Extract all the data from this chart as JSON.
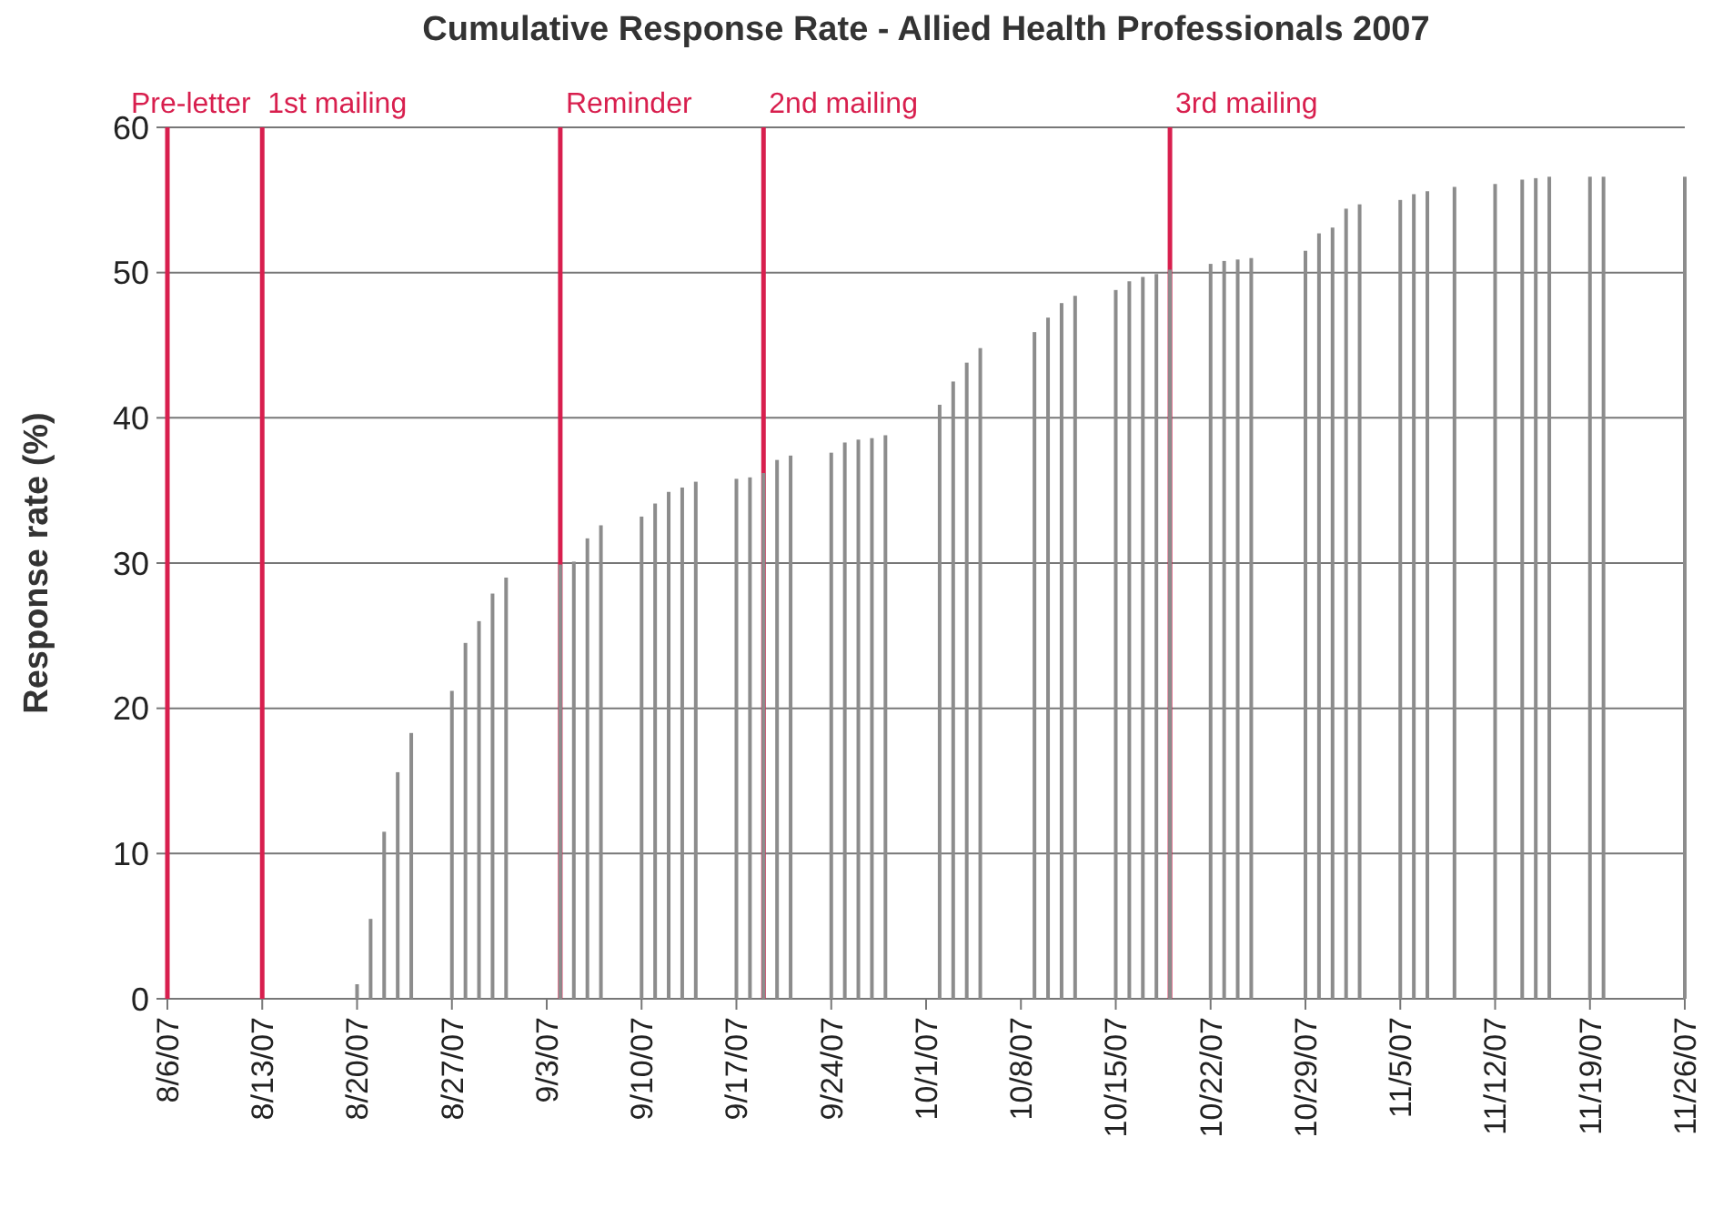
{
  "chart_data": {
    "type": "bar",
    "title": "Cumulative Response Rate - Allied Health Professionals 2007",
    "ylabel": "Response rate (%)",
    "x": [
      "2007-08-20",
      "2007-08-21",
      "2007-08-22",
      "2007-08-23",
      "2007-08-24",
      "2007-08-27",
      "2007-08-28",
      "2007-08-29",
      "2007-08-30",
      "2007-08-31",
      "2007-09-04",
      "2007-09-05",
      "2007-09-06",
      "2007-09-07",
      "2007-09-10",
      "2007-09-11",
      "2007-09-12",
      "2007-09-13",
      "2007-09-14",
      "2007-09-17",
      "2007-09-18",
      "2007-09-19",
      "2007-09-20",
      "2007-09-21",
      "2007-09-24",
      "2007-09-25",
      "2007-09-26",
      "2007-09-27",
      "2007-09-28",
      "2007-10-02",
      "2007-10-03",
      "2007-10-04",
      "2007-10-05",
      "2007-10-09",
      "2007-10-10",
      "2007-10-11",
      "2007-10-12",
      "2007-10-15",
      "2007-10-16",
      "2007-10-17",
      "2007-10-18",
      "2007-10-19",
      "2007-10-22",
      "2007-10-23",
      "2007-10-24",
      "2007-10-25",
      "2007-10-29",
      "2007-10-30",
      "2007-10-31",
      "2007-11-01",
      "2007-11-02",
      "2007-11-05",
      "2007-11-06",
      "2007-11-07",
      "2007-11-09",
      "2007-11-12",
      "2007-11-14",
      "2007-11-15",
      "2007-11-16",
      "2007-11-19",
      "2007-11-20",
      "2007-11-26"
    ],
    "values": [
      1.0,
      5.5,
      11.5,
      15.6,
      18.3,
      21.2,
      24.5,
      26.0,
      27.9,
      29.0,
      29.9,
      30.1,
      31.7,
      32.6,
      33.2,
      34.1,
      34.9,
      35.2,
      35.6,
      35.8,
      35.9,
      36.2,
      37.1,
      37.4,
      37.6,
      38.3,
      38.5,
      38.6,
      38.8,
      40.9,
      42.5,
      43.8,
      44.8,
      45.9,
      46.9,
      47.9,
      48.4,
      48.8,
      49.4,
      49.7,
      49.9,
      50.2,
      50.6,
      50.8,
      50.9,
      51.0,
      51.5,
      52.7,
      53.1,
      54.4,
      54.7,
      55.0,
      55.4,
      55.6,
      55.9,
      56.1,
      56.4,
      56.5,
      56.6,
      56.6,
      56.6,
      56.6
    ],
    "color": "#8c8c8c",
    "xlim": [
      "2007-08-06",
      "2007-11-26"
    ],
    "xticks": [
      {
        "value": "2007-08-06",
        "label": "8/6/07"
      },
      {
        "value": "2007-08-13",
        "label": "8/13/07"
      },
      {
        "value": "2007-08-20",
        "label": "8/20/07"
      },
      {
        "value": "2007-08-27",
        "label": "8/27/07"
      },
      {
        "value": "2007-09-03",
        "label": "9/3/07"
      },
      {
        "value": "2007-09-10",
        "label": "9/10/07"
      },
      {
        "value": "2007-09-17",
        "label": "9/17/07"
      },
      {
        "value": "2007-09-24",
        "label": "9/24/07"
      },
      {
        "value": "2007-10-01",
        "label": "10/1/07"
      },
      {
        "value": "2007-10-08",
        "label": "10/8/07"
      },
      {
        "value": "2007-10-15",
        "label": "10/15/07"
      },
      {
        "value": "2007-10-22",
        "label": "10/22/07"
      },
      {
        "value": "2007-10-29",
        "label": "10/29/07"
      },
      {
        "value": "2007-11-05",
        "label": "11/5/07"
      },
      {
        "value": "2007-11-12",
        "label": "11/12/07"
      },
      {
        "value": "2007-11-19",
        "label": "11/19/07"
      },
      {
        "value": "2007-11-26",
        "label": "11/26/07"
      }
    ],
    "ylim": [
      0,
      60
    ],
    "yticks": [
      0,
      10,
      20,
      30,
      40,
      50,
      60
    ],
    "grid": "y",
    "ref_lines": [
      {
        "axis": "x",
        "value": "2007-08-06",
        "label": "Pre-letter",
        "color": "#d81f4e"
      },
      {
        "axis": "x",
        "value": "2007-08-13",
        "label": "1st mailing",
        "color": "#d81f4e"
      },
      {
        "axis": "x",
        "value": "2007-09-04",
        "label": "Reminder",
        "color": "#d81f4e"
      },
      {
        "axis": "x",
        "value": "2007-09-19",
        "label": "2nd mailing",
        "color": "#d81f4e"
      },
      {
        "axis": "x",
        "value": "2007-10-19",
        "label": "3rd mailing",
        "color": "#d81f4e"
      }
    ]
  }
}
